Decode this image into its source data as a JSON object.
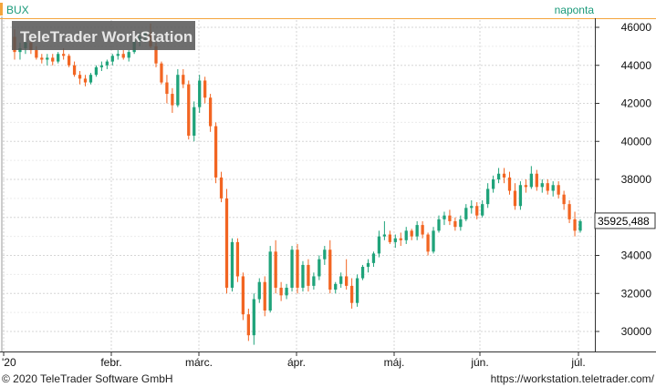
{
  "chart_data": {
    "type": "candlestick",
    "symbol": "BUX",
    "period": "naponta",
    "watermark": "TeleTrader WorkStation",
    "last_price": "35925,488",
    "y_ticks": [
      "30000",
      "32000",
      "34000",
      "36000",
      "38000",
      "40000",
      "42000",
      "44000",
      "46000"
    ],
    "x_ticks": [
      "'20",
      "febr.",
      "márc.",
      "ápr.",
      "máj.",
      "jún.",
      "júl."
    ],
    "ylim": [
      29000,
      46800
    ],
    "grid": true,
    "colors": {
      "up": "#1fa37a",
      "down": "#f26522",
      "accent": "#f4a53c",
      "period_text": "#1a9a7a",
      "title_text": "#1a9a7a"
    },
    "candles": [
      [
        45500,
        45900,
        44300,
        44700
      ],
      [
        44700,
        45200,
        44300,
        44900
      ],
      [
        44900,
        45500,
        44600,
        45200
      ],
      [
        45200,
        45300,
        44600,
        44800
      ],
      [
        44800,
        45000,
        44300,
        44400
      ],
      [
        44400,
        44600,
        44100,
        44300
      ],
      [
        44300,
        44600,
        44000,
        44400
      ],
      [
        44400,
        44600,
        44000,
        44200
      ],
      [
        44200,
        44700,
        44100,
        44600
      ],
      [
        44600,
        44900,
        44300,
        44500
      ],
      [
        44500,
        44600,
        43900,
        44000
      ],
      [
        44000,
        44200,
        43400,
        43500
      ],
      [
        43500,
        43700,
        43000,
        43300
      ],
      [
        43300,
        43500,
        42900,
        43100
      ],
      [
        43100,
        43600,
        43000,
        43500
      ],
      [
        43500,
        44000,
        43400,
        43900
      ],
      [
        43900,
        44200,
        43700,
        44000
      ],
      [
        44000,
        44300,
        43800,
        44200
      ],
      [
        44200,
        44600,
        44000,
        44500
      ],
      [
        44500,
        44800,
        44300,
        44600
      ],
      [
        44600,
        44800,
        44300,
        44400
      ],
      [
        44400,
        44800,
        44200,
        44700
      ],
      [
        44700,
        45500,
        44600,
        45300
      ],
      [
        45300,
        45700,
        45000,
        45500
      ],
      [
        45500,
        45800,
        45200,
        45700
      ],
      [
        45700,
        46200,
        44900,
        45000
      ],
      [
        45000,
        45200,
        43900,
        44100
      ],
      [
        44100,
        44200,
        43000,
        43100
      ],
      [
        43100,
        43500,
        42000,
        42500
      ],
      [
        42500,
        42800,
        41500,
        41900
      ],
      [
        41900,
        43800,
        41800,
        43500
      ],
      [
        43500,
        43800,
        42800,
        43000
      ],
      [
        43000,
        43200,
        40100,
        40300
      ],
      [
        40300,
        42100,
        40000,
        41800
      ],
      [
        41800,
        43500,
        41500,
        43200
      ],
      [
        43200,
        43400,
        42000,
        42300
      ],
      [
        42300,
        42500,
        40500,
        40800
      ],
      [
        40800,
        41000,
        37800,
        38100
      ],
      [
        38100,
        38400,
        36800,
        37000
      ],
      [
        37000,
        37500,
        32000,
        32300
      ],
      [
        32300,
        34900,
        32100,
        34700
      ],
      [
        34700,
        34900,
        32600,
        32900
      ],
      [
        32900,
        33100,
        30600,
        30900
      ],
      [
        30900,
        31200,
        29500,
        29800
      ],
      [
        29800,
        32000,
        29300,
        31700
      ],
      [
        31700,
        32800,
        31500,
        32600
      ],
      [
        32600,
        32900,
        30800,
        31100
      ],
      [
        31100,
        34500,
        31000,
        34200
      ],
      [
        34200,
        34800,
        32000,
        32300
      ],
      [
        32300,
        32600,
        31600,
        31900
      ],
      [
        31900,
        32500,
        31700,
        32300
      ],
      [
        32300,
        34500,
        32100,
        34300
      ],
      [
        34300,
        34600,
        32000,
        32300
      ],
      [
        32300,
        33700,
        32100,
        33500
      ],
      [
        33500,
        33800,
        32100,
        32400
      ],
      [
        32400,
        33100,
        32200,
        32900
      ],
      [
        32900,
        34000,
        32700,
        33800
      ],
      [
        33800,
        34500,
        33500,
        34300
      ],
      [
        34300,
        34800,
        32000,
        32200
      ],
      [
        32200,
        32600,
        32000,
        32500
      ],
      [
        32500,
        33100,
        32300,
        32900
      ],
      [
        32900,
        33800,
        32200,
        32400
      ],
      [
        32400,
        32800,
        31200,
        31500
      ],
      [
        31500,
        33000,
        31300,
        32800
      ],
      [
        32800,
        33500,
        32700,
        33400
      ],
      [
        33400,
        33800,
        33100,
        33600
      ],
      [
        33600,
        34200,
        33400,
        34100
      ],
      [
        34100,
        35300,
        33900,
        35000
      ],
      [
        35000,
        35800,
        34800,
        35100
      ],
      [
        35100,
        35300,
        34600,
        34700
      ],
      [
        34700,
        35100,
        34400,
        34900
      ],
      [
        34900,
        35200,
        34500,
        34800
      ],
      [
        34800,
        35500,
        34600,
        35300
      ],
      [
        35300,
        35400,
        34800,
        35000
      ],
      [
        35000,
        35800,
        34800,
        35600
      ],
      [
        35600,
        35800,
        34900,
        35100
      ],
      [
        35100,
        35200,
        34000,
        34200
      ],
      [
        34200,
        35500,
        34100,
        35300
      ],
      [
        35300,
        36100,
        35200,
        35900
      ],
      [
        35900,
        36300,
        35600,
        36100
      ],
      [
        36100,
        36400,
        35600,
        35800
      ],
      [
        35800,
        36000,
        35300,
        35500
      ],
      [
        35500,
        36100,
        35300,
        35900
      ],
      [
        35900,
        36700,
        35800,
        36500
      ],
      [
        36500,
        36900,
        36200,
        36600
      ],
      [
        36600,
        36800,
        35900,
        36100
      ],
      [
        36100,
        36900,
        36000,
        36700
      ],
      [
        36700,
        37800,
        36500,
        37500
      ],
      [
        37500,
        38200,
        37300,
        38000
      ],
      [
        38000,
        38600,
        37800,
        38300
      ],
      [
        38300,
        38600,
        37800,
        38100
      ],
      [
        38100,
        38400,
        37200,
        37400
      ],
      [
        37400,
        37800,
        36400,
        36600
      ],
      [
        36600,
        37900,
        36400,
        37700
      ],
      [
        37700,
        38000,
        37300,
        37600
      ],
      [
        37600,
        38700,
        37500,
        38300
      ],
      [
        38300,
        38500,
        37400,
        37600
      ],
      [
        37600,
        38000,
        37300,
        37800
      ],
      [
        37800,
        38000,
        37200,
        37400
      ],
      [
        37400,
        37900,
        37100,
        37700
      ],
      [
        37700,
        37900,
        37000,
        37200
      ],
      [
        37200,
        37400,
        36400,
        36700
      ],
      [
        36700,
        36900,
        35700,
        35900
      ],
      [
        35900,
        36300,
        35000,
        35300
      ],
      [
        35300,
        35900,
        35200,
        35800
      ]
    ]
  },
  "footer": {
    "copyright": "© 2020 TeleTrader Software GmbH",
    "url": "https://workstation.teletrader.com/"
  }
}
